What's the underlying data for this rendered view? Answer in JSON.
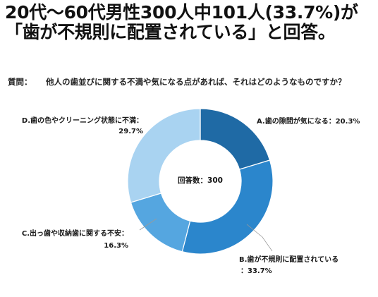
{
  "headline": "20代〜60代男性300人中101人(33.7%)が「歯が不規則に配置されている」と回答。",
  "question": {
    "label": "質問：",
    "text": "他人の歯並びに関する不満や気になる点があれば、それはどのようなものですか？"
  },
  "chart_data": {
    "type": "pie",
    "variant": "donut",
    "center_label": "回答数：300",
    "slices": [
      {
        "label": "A.歯の隙間が気になる",
        "percent": "20.3%",
        "value": 20.3,
        "color": "#1f6aa5"
      },
      {
        "label": "B.歯が不規則に配置されている",
        "percent": "33.7%",
        "value": 33.7,
        "color": "#2b86cc"
      },
      {
        "label": "C.出っ歯や収納歯に関する不安",
        "percent": "16.3%",
        "value": 16.3,
        "color": "#55a6e0"
      },
      {
        "label": "D.歯の色やクリーニング状態に不満",
        "percent": "29.7%",
        "value": 29.7,
        "color": "#a9d3f1"
      }
    ],
    "label_text": {
      "A": "A.歯の隙間が気になる：20.3%",
      "B1": "B.歯が不規則に配置されている",
      "B2": "：33.7%",
      "C1": "C.出っ歯や収納歯に関する不安：",
      "C2": "16.3%",
      "D1": "D.歯の色やクリーニング状態に不満：",
      "D2": "29.7%"
    }
  }
}
